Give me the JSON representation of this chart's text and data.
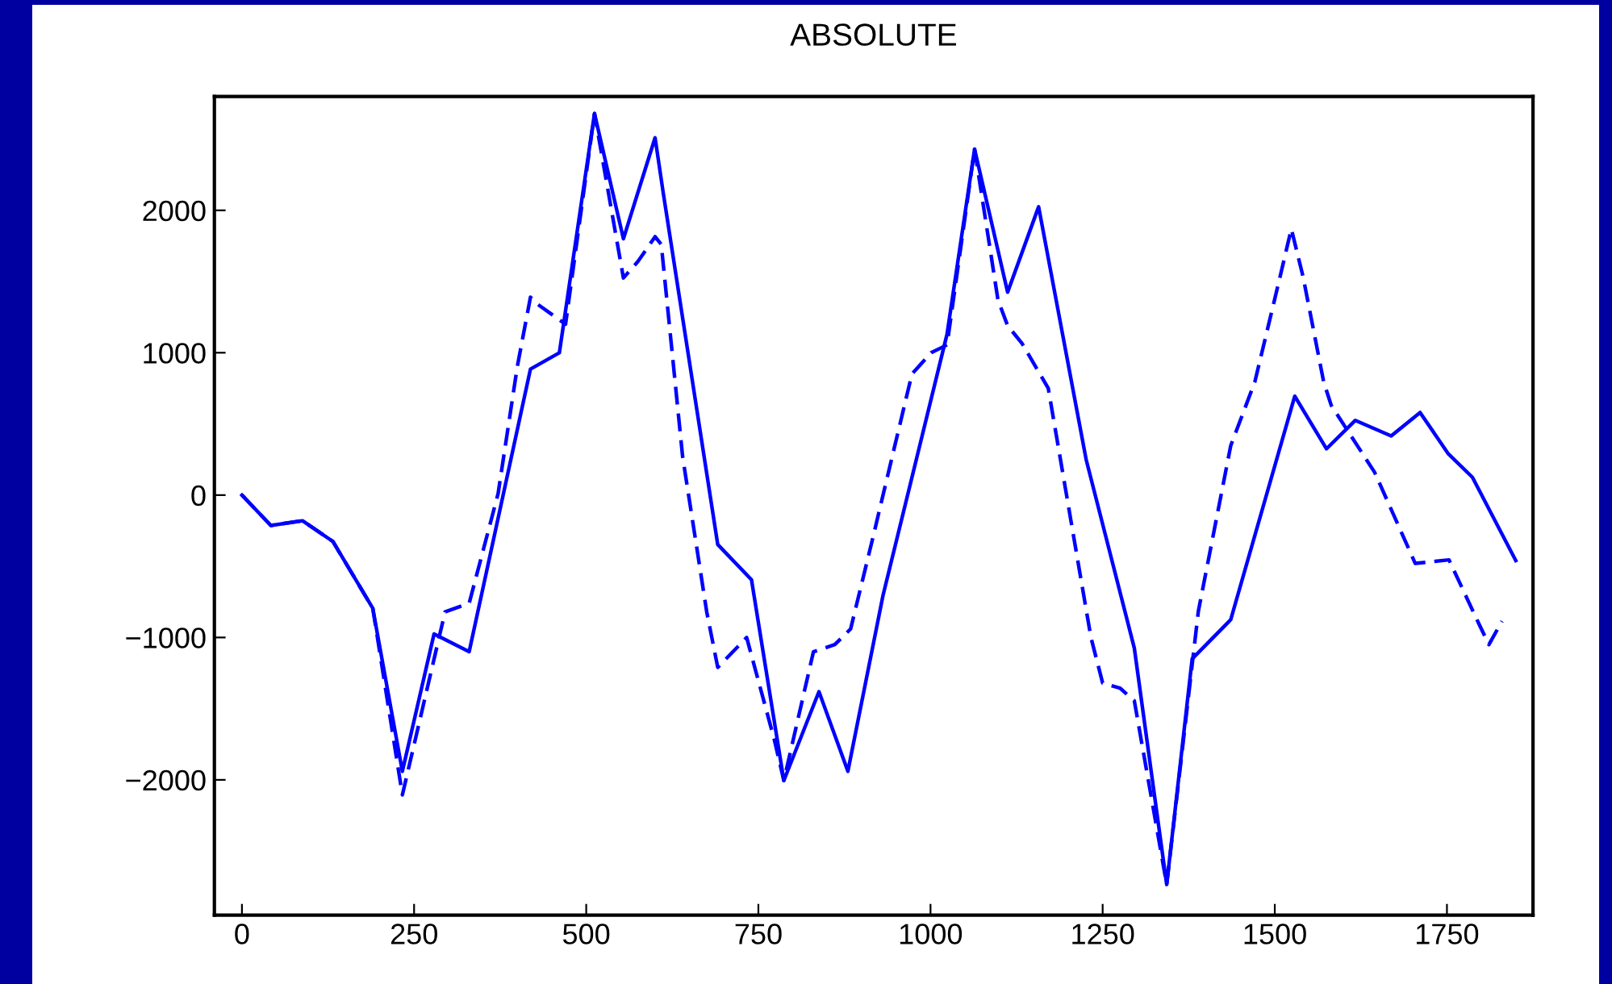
{
  "chart_data": {
    "type": "line",
    "title": "ABSOLUTE",
    "xlim": [
      -40,
      1875
    ],
    "ylim": [
      -2950,
      2800
    ],
    "xticks": [
      0,
      250,
      500,
      750,
      1000,
      1250,
      1500,
      1750
    ],
    "yticks": [
      -2000,
      -1000,
      0,
      1000,
      2000
    ],
    "grid": false,
    "legend": false,
    "marker": "none",
    "series": [
      {
        "color": "#0000ff",
        "line_style": "solid",
        "x": [
          0,
          42,
          88,
          132,
          190,
          233,
          279,
          330,
          419,
          461,
          512,
          554,
          600,
          612,
          691,
          740,
          787,
          838,
          880,
          931,
          1024,
          1064,
          1112,
          1157,
          1226,
          1296,
          1343,
          1380,
          1436,
          1529,
          1575,
          1617,
          1669,
          1711,
          1752,
          1787,
          1850
        ],
        "values": [
          0,
          -213,
          -180,
          -325,
          -795,
          -1940,
          -975,
          -1100,
          885,
          1000,
          2680,
          1800,
          2510,
          2118,
          -347,
          -594,
          -2005,
          -1380,
          -1940,
          -705,
          1130,
          2430,
          1425,
          2025,
          250,
          -1075,
          -2735,
          -1150,
          -875,
          695,
          325,
          525,
          415,
          580,
          290,
          125,
          -460
        ]
      },
      {
        "color": "#0000ff",
        "line_style": "dashed",
        "x": [
          0,
          42,
          88,
          132,
          190,
          233,
          295,
          330,
          372,
          400,
          419,
          428,
          470,
          512,
          554,
          575,
          600,
          609,
          640,
          675,
          691,
          733,
          773,
          787,
          830,
          861,
          884,
          915,
          973,
          1001,
          1024,
          1064,
          1098,
          1112,
          1133,
          1171,
          1233,
          1250,
          1275,
          1296,
          1343,
          1389,
          1436,
          1471,
          1506,
          1524,
          1541,
          1571,
          1582,
          1645,
          1704,
          1753,
          1797,
          1811,
          1830
        ],
        "values": [
          0,
          -213,
          -180,
          -325,
          -795,
          -2105,
          -820,
          -760,
          10,
          905,
          1390,
          1345,
          1200,
          2680,
          1525,
          1640,
          1815,
          1760,
          270,
          -820,
          -1210,
          -1000,
          -1715,
          -2005,
          -1100,
          -1050,
          -940,
          -325,
          850,
          1000,
          1055,
          2430,
          1370,
          1190,
          1065,
          750,
          -1000,
          -1320,
          -1355,
          -1445,
          -2735,
          -815,
          347,
          795,
          1500,
          1870,
          1535,
          795,
          630,
          160,
          -480,
          -455,
          -910,
          -1050,
          -885
        ]
      }
    ]
  }
}
